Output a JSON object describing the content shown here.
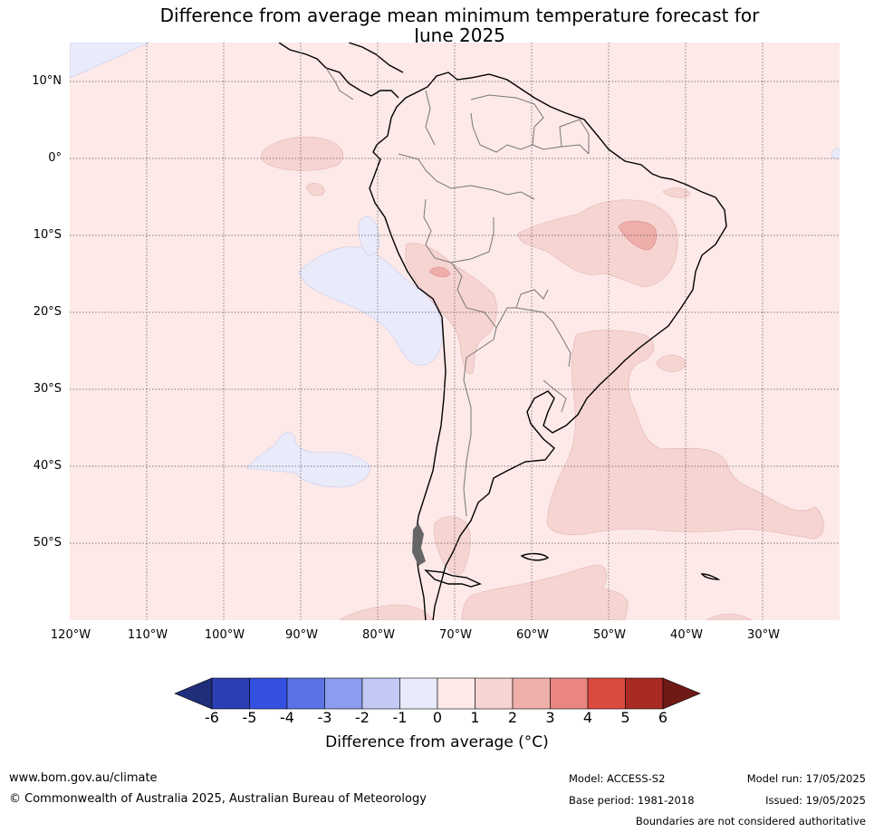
{
  "title_line1": "Difference from average mean minimum temperature forecast for",
  "title_line2": "June 2025",
  "lat_labels": [
    "10°N",
    "0°",
    "10°S",
    "20°S",
    "30°S",
    "40°S",
    "50°S"
  ],
  "lon_labels": [
    "120°W",
    "110°W",
    "100°W",
    "90°W",
    "80°W",
    "70°W",
    "60°W",
    "50°W",
    "40°W",
    "30°W"
  ],
  "colorbar": {
    "ticks": [
      "-6",
      "-5",
      "-4",
      "-3",
      "-2",
      "-1",
      "0",
      "1",
      "2",
      "3",
      "4",
      "5",
      "6"
    ],
    "colors": [
      "#1f2d7a",
      "#2b3fb5",
      "#3350e0",
      "#5c73e6",
      "#8c9cee",
      "#c3c9f4",
      "#e9ebfb",
      "#fce9e8",
      "#f6d4d2",
      "#eeaeaa",
      "#e98680",
      "#dc4b3f",
      "#a92a22",
      "#6e1a16"
    ],
    "label": "Difference from average (°C)"
  },
  "footer": {
    "website": "www.bom.gov.au/climate",
    "copyright": "© Commonwealth of Australia 2025, Australian Bureau of Meteorology",
    "model": "Model: ACCESS-S2",
    "base_period": "Base period: 1981-2018",
    "model_run": "Model run: 17/05/2025",
    "issued": "Issued: 19/05/2025",
    "disclaimer": "Boundaries are not considered authoritative"
  }
}
